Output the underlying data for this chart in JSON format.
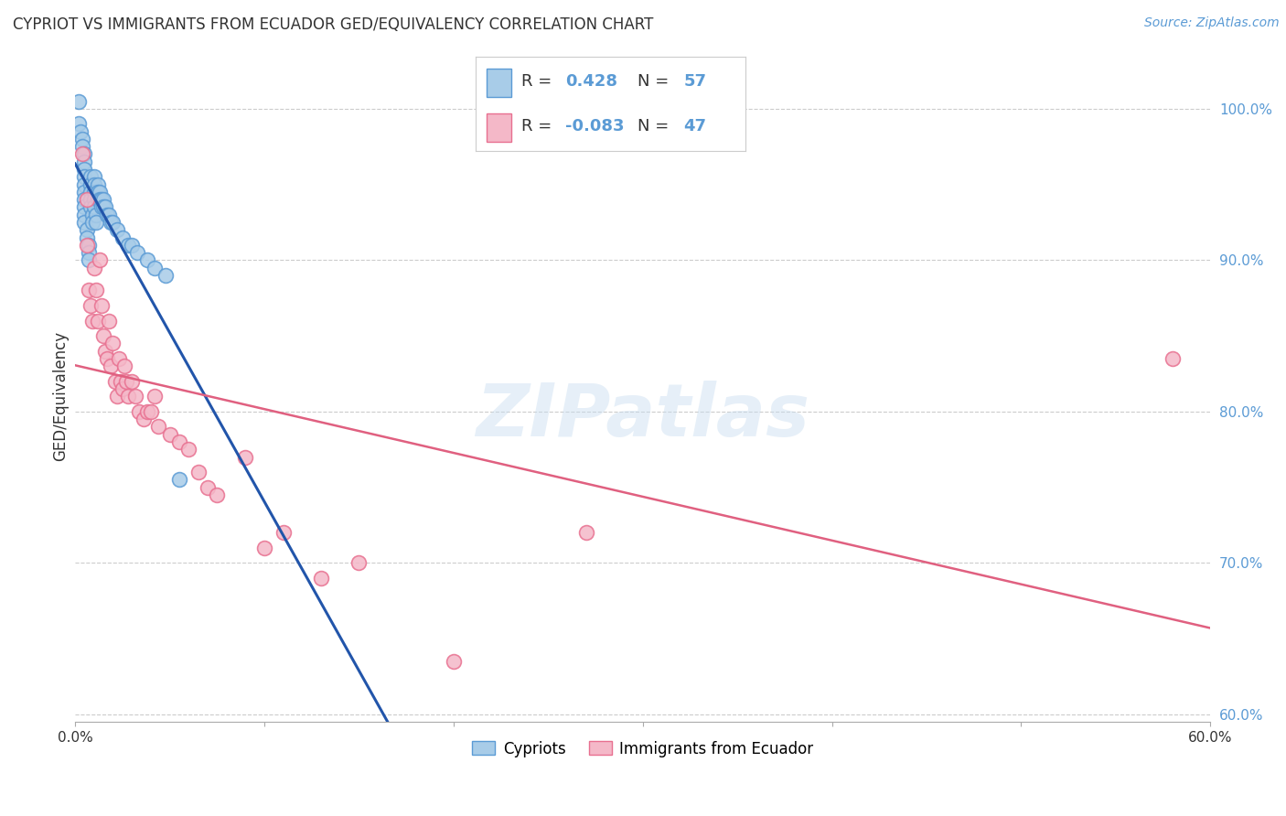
{
  "title": "CYPRIOT VS IMMIGRANTS FROM ECUADOR GED/EQUIVALENCY CORRELATION CHART",
  "source": "Source: ZipAtlas.com",
  "ylabel": "GED/Equivalency",
  "xlim": [
    0.0,
    0.6
  ],
  "ylim": [
    0.595,
    1.025
  ],
  "yticks": [
    0.6,
    0.7,
    0.8,
    0.9,
    1.0
  ],
  "ytick_labels": [
    "60.0%",
    "70.0%",
    "80.0%",
    "90.0%",
    "100.0%"
  ],
  "xticks": [
    0.0,
    0.1,
    0.2,
    0.3,
    0.4,
    0.5,
    0.6
  ],
  "xtick_labels": [
    "0.0%",
    "",
    "",
    "",
    "",
    "",
    "60.0%"
  ],
  "blue_R": "0.428",
  "blue_N": "57",
  "pink_R": "-0.083",
  "pink_N": "47",
  "blue_color": "#a8cce8",
  "pink_color": "#f4b8c8",
  "blue_edge_color": "#5b9bd5",
  "pink_edge_color": "#e87090",
  "blue_line_color": "#2255aa",
  "pink_line_color": "#e06080",
  "blue_scatter_x": [
    0.002,
    0.002,
    0.003,
    0.004,
    0.004,
    0.005,
    0.005,
    0.005,
    0.005,
    0.005,
    0.005,
    0.005,
    0.005,
    0.005,
    0.005,
    0.006,
    0.006,
    0.007,
    0.007,
    0.007,
    0.008,
    0.008,
    0.008,
    0.008,
    0.008,
    0.009,
    0.009,
    0.01,
    0.01,
    0.01,
    0.01,
    0.01,
    0.011,
    0.011,
    0.012,
    0.012,
    0.012,
    0.013,
    0.013,
    0.014,
    0.014,
    0.015,
    0.015,
    0.016,
    0.017,
    0.018,
    0.019,
    0.02,
    0.022,
    0.025,
    0.028,
    0.03,
    0.033,
    0.038,
    0.042,
    0.048,
    0.055
  ],
  "blue_scatter_y": [
    1.005,
    0.99,
    0.985,
    0.98,
    0.975,
    0.97,
    0.965,
    0.96,
    0.955,
    0.95,
    0.945,
    0.94,
    0.935,
    0.93,
    0.925,
    0.92,
    0.915,
    0.91,
    0.905,
    0.9,
    0.955,
    0.95,
    0.945,
    0.94,
    0.935,
    0.93,
    0.925,
    0.955,
    0.95,
    0.945,
    0.94,
    0.935,
    0.93,
    0.925,
    0.95,
    0.945,
    0.94,
    0.945,
    0.94,
    0.94,
    0.935,
    0.94,
    0.935,
    0.935,
    0.93,
    0.93,
    0.925,
    0.925,
    0.92,
    0.915,
    0.91,
    0.91,
    0.905,
    0.9,
    0.895,
    0.89,
    0.755
  ],
  "pink_scatter_x": [
    0.004,
    0.006,
    0.006,
    0.007,
    0.008,
    0.009,
    0.01,
    0.011,
    0.012,
    0.013,
    0.014,
    0.015,
    0.016,
    0.017,
    0.018,
    0.019,
    0.02,
    0.021,
    0.022,
    0.023,
    0.024,
    0.025,
    0.026,
    0.027,
    0.028,
    0.03,
    0.032,
    0.034,
    0.036,
    0.038,
    0.04,
    0.042,
    0.044,
    0.05,
    0.055,
    0.06,
    0.065,
    0.07,
    0.075,
    0.09,
    0.1,
    0.11,
    0.13,
    0.15,
    0.2,
    0.27,
    0.58
  ],
  "pink_scatter_y": [
    0.97,
    0.94,
    0.91,
    0.88,
    0.87,
    0.86,
    0.895,
    0.88,
    0.86,
    0.9,
    0.87,
    0.85,
    0.84,
    0.835,
    0.86,
    0.83,
    0.845,
    0.82,
    0.81,
    0.835,
    0.82,
    0.815,
    0.83,
    0.82,
    0.81,
    0.82,
    0.81,
    0.8,
    0.795,
    0.8,
    0.8,
    0.81,
    0.79,
    0.785,
    0.78,
    0.775,
    0.76,
    0.75,
    0.745,
    0.77,
    0.71,
    0.72,
    0.69,
    0.7,
    0.635,
    0.72,
    0.835
  ],
  "watermark": "ZIPatlas",
  "legend_labels": [
    "Cypriots",
    "Immigrants from Ecuador"
  ],
  "background_color": "#ffffff",
  "grid_color": "#cccccc"
}
